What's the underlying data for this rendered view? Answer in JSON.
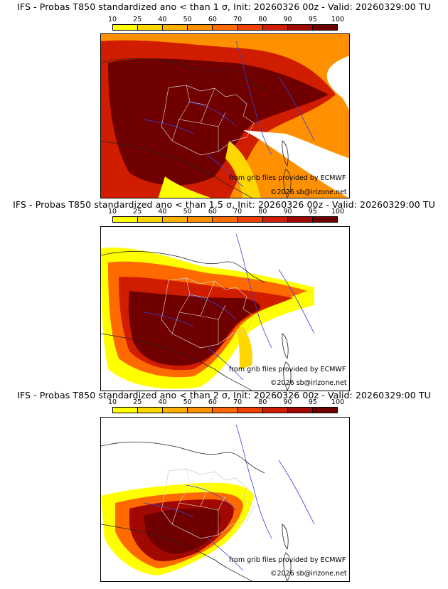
{
  "colorbar": {
    "ticks": [
      "10",
      "25",
      "40",
      "50",
      "60",
      "70",
      "80",
      "90",
      "95",
      "100"
    ],
    "colors": [
      "#ffff00",
      "#ffd700",
      "#ffb000",
      "#ff9000",
      "#ff6a00",
      "#f04000",
      "#d01d00",
      "#a00800",
      "#700000"
    ]
  },
  "panels": [
    {
      "title": "IFS - Probas T850  standardized ano < than 1 σ, Init: 20260326 00z - Valid: 20260329:00 TU"
    },
    {
      "title": "IFS - Probas T850  standardized ano < than 1.5 σ, Init: 20260326 00z - Valid: 20260329:00 TU"
    },
    {
      "title": "IFS - Probas T850  standardized ano < than 2 σ, Init: 20260326 00z - Valid: 20260329:00 TU"
    }
  ],
  "credits": {
    "source": "from grib files provided by ECMWF",
    "copyright": "©2026 sb@irizone.net"
  }
}
